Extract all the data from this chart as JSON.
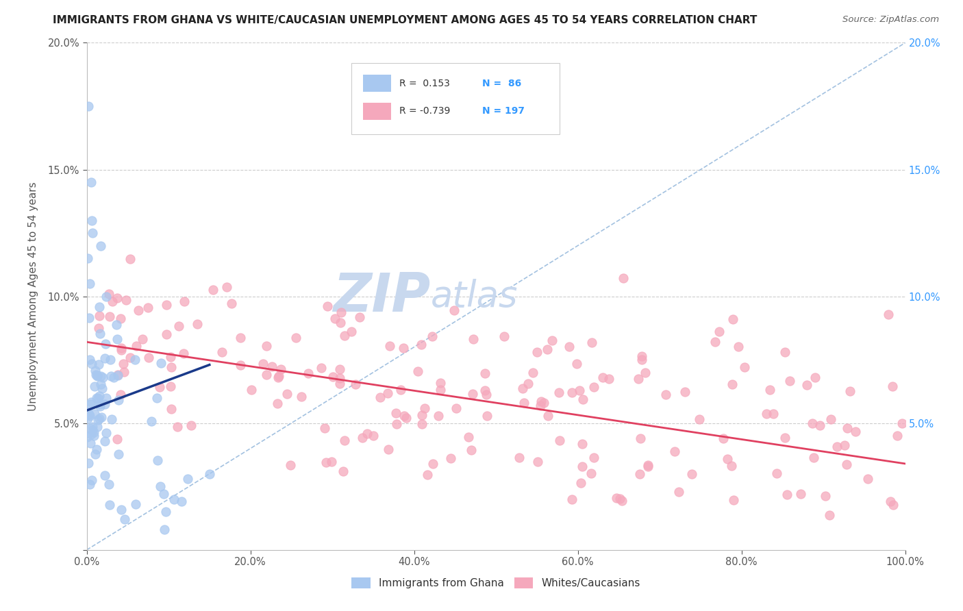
{
  "title": "IMMIGRANTS FROM GHANA VS WHITE/CAUCASIAN UNEMPLOYMENT AMONG AGES 45 TO 54 YEARS CORRELATION CHART",
  "source": "Source: ZipAtlas.com",
  "ylabel": "Unemployment Among Ages 45 to 54 years",
  "xlim": [
    0,
    1.0
  ],
  "ylim": [
    0,
    0.2
  ],
  "xticks": [
    0.0,
    0.2,
    0.4,
    0.6,
    0.8,
    1.0
  ],
  "yticks": [
    0.0,
    0.05,
    0.1,
    0.15,
    0.2
  ],
  "xtick_labels": [
    "0.0%",
    "20.0%",
    "40.0%",
    "60.0%",
    "80.0%",
    "100.0%"
  ],
  "ytick_labels": [
    "",
    "5.0%",
    "10.0%",
    "15.0%",
    "20.0%"
  ],
  "right_ytick_labels": [
    "",
    "5.0%",
    "10.0%",
    "15.0%",
    "20.0%"
  ],
  "legend_r_blue": "R =  0.153",
  "legend_n_blue": "N =  86",
  "legend_r_pink": "R = -0.739",
  "legend_n_pink": "N = 197",
  "blue_color": "#a8c8f0",
  "pink_color": "#f5a8bc",
  "blue_edge_color": "#a8c8f0",
  "pink_edge_color": "#f5a8bc",
  "blue_line_color": "#1a3a8a",
  "pink_line_color": "#e04060",
  "diag_line_color": "#99bbdd",
  "watermark_zip": "#c8d8ee",
  "watermark_atlas": "#c8d8ee",
  "background_color": "#ffffff",
  "grid_color": "#cccccc",
  "title_color": "#222222",
  "source_color": "#666666",
  "axis_text_color": "#555555",
  "right_axis_color": "#3399ff",
  "legend_text_color": "#333333",
  "legend_n_color": "#3399ff",
  "blue_intercept": 0.055,
  "blue_slope": 0.12,
  "pink_intercept": 0.082,
  "pink_slope": -0.048
}
